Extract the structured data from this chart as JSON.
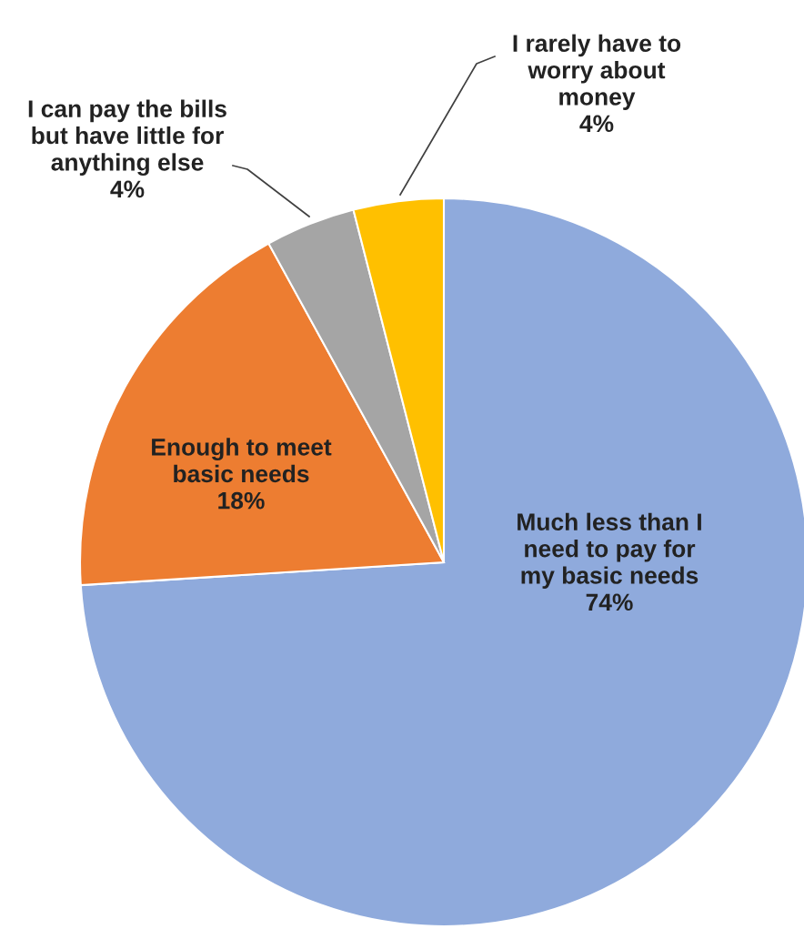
{
  "chart_data": {
    "type": "pie",
    "categories": [
      "Much less than I\nneed to pay for\nmy basic needs",
      "Enough to meet\nbasic needs",
      "I can pay the bills\nbut have little for\nanything else",
      "I rarely have to\nworry about\nmoney"
    ],
    "values": [
      74,
      18,
      4,
      4
    ],
    "value_labels": [
      "74%",
      "18%",
      "4%",
      "4%"
    ],
    "colors": [
      "#8faadc",
      "#ed7d31",
      "#a5a5a5",
      "#ffc000"
    ]
  }
}
